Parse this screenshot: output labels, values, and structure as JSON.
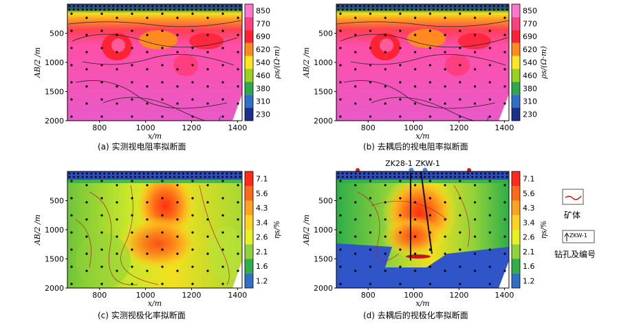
{
  "chart_data": [
    {
      "type": "heatmap",
      "panel": "a",
      "caption": "(a)  实测视电阻率拟断面",
      "xlabel": "x/m",
      "ylabel": "AB/2 /m",
      "xlim": [
        660,
        1420
      ],
      "ylim": [
        2000,
        0
      ],
      "xticks": [
        800,
        1000,
        1200,
        1400
      ],
      "yticks": [
        500,
        1000,
        1500,
        2000
      ],
      "colorbar_label": "ρs/(Ω·m)",
      "colorbar_ticks": [
        850,
        770,
        690,
        620,
        540,
        460,
        380,
        310,
        230
      ],
      "colorbar_colors": [
        "#ff77cc",
        "#ff3f7f",
        "#ff2233",
        "#ff8a1f",
        "#ffe61f",
        "#9ad31f",
        "#2ea84a",
        "#2f6fc6",
        "#1c2f8a"
      ]
    },
    {
      "type": "heatmap",
      "panel": "b",
      "caption": "(b) 去耦后的视电阻率拟断面",
      "xlabel": "x/m",
      "ylabel": "AB/2 /m",
      "xlim": [
        660,
        1420
      ],
      "ylim": [
        2000,
        0
      ],
      "xticks": [
        800,
        1000,
        1200,
        1400
      ],
      "yticks": [
        500,
        1000,
        1500,
        2000
      ],
      "colorbar_label": "ρs/(Ω·m)",
      "colorbar_ticks": [
        850,
        770,
        690,
        620,
        540,
        460,
        380,
        310,
        230
      ],
      "colorbar_colors": [
        "#ff77cc",
        "#ff3f7f",
        "#ff2233",
        "#ff8a1f",
        "#ffe61f",
        "#9ad31f",
        "#2ea84a",
        "#2f6fc6",
        "#1c2f8a"
      ]
    },
    {
      "type": "heatmap",
      "panel": "c",
      "caption": "(c) 实测视极化率拟断面",
      "xlabel": "x/m",
      "ylabel": "AB/2 /m",
      "xlim": [
        660,
        1420
      ],
      "ylim": [
        2000,
        0
      ],
      "xticks": [
        800,
        1000,
        1200,
        1400
      ],
      "yticks": [
        500,
        1000,
        1500,
        2000
      ],
      "colorbar_label": "ηs/%",
      "colorbar_ticks": [
        7.1,
        5.6,
        4.3,
        3.4,
        2.6,
        2.1,
        1.6,
        1.2
      ],
      "colorbar_colors": [
        "#ff2a1a",
        "#ff6a1a",
        "#ffa21f",
        "#ffd21f",
        "#e8f21f",
        "#8fd23a",
        "#2fae4a",
        "#2f6fc6"
      ]
    },
    {
      "type": "heatmap",
      "panel": "d",
      "caption": "(d) 去耦后的视极化率拟断面",
      "xlabel": "x/m",
      "ylabel": "AB/2 /m",
      "xlim": [
        660,
        1420
      ],
      "ylim": [
        2000,
        0
      ],
      "xticks": [
        800,
        1000,
        1200,
        1400
      ],
      "yticks": [
        500,
        1000,
        1500,
        2000
      ],
      "colorbar_label": "ηs/%",
      "colorbar_ticks": [
        7.1,
        5.6,
        4.3,
        3.4,
        2.6,
        2.1,
        1.6,
        1.2
      ],
      "colorbar_colors": [
        "#ff2a1a",
        "#ff6a1a",
        "#ffa21f",
        "#ffd21f",
        "#e8f21f",
        "#8fd23a",
        "#2fae4a",
        "#2f6fc6"
      ],
      "annotations": [
        "ZK28-1",
        "ZKW-1"
      ]
    }
  ],
  "legend": {
    "ore_label": "矿体",
    "ore_color": "#cc1111",
    "drill_tag": "ZKW-1",
    "drill_label": "钻孔及编号"
  }
}
